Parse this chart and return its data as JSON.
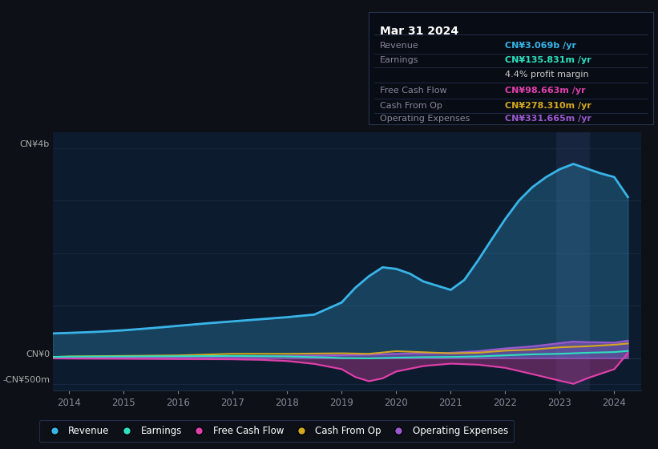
{
  "bg_color": "#0d1117",
  "plot_bg_color": "#0d1b2e",
  "grid_color": "#1e2f45",
  "title_date": "Mar 31 2024",
  "info_box_bg": "#080c14",
  "info_box_border": "#2a3350",
  "ylabel_top": "CN¥4b",
  "ylabel_zero": "CN¥0",
  "ylabel_neg": "-CN¥500m",
  "ylim": [
    -620,
    4300
  ],
  "xlim": [
    2013.7,
    2024.5
  ],
  "x_ticks": [
    2014,
    2015,
    2016,
    2017,
    2018,
    2019,
    2020,
    2021,
    2022,
    2023,
    2024
  ],
  "highlight_x": 2023.25,
  "revenue_x": [
    2013.7,
    2014.0,
    2014.5,
    2015.0,
    2015.5,
    2016.0,
    2016.5,
    2017.0,
    2017.5,
    2018.0,
    2018.5,
    2019.0,
    2019.25,
    2019.5,
    2019.75,
    2020.0,
    2020.25,
    2020.5,
    2020.75,
    2021.0,
    2021.25,
    2021.5,
    2021.75,
    2022.0,
    2022.25,
    2022.5,
    2022.75,
    2023.0,
    2023.25,
    2023.5,
    2023.75,
    2024.0,
    2024.25
  ],
  "revenue_y": [
    470,
    480,
    500,
    530,
    570,
    615,
    660,
    700,
    740,
    780,
    830,
    1060,
    1340,
    1560,
    1730,
    1700,
    1610,
    1460,
    1380,
    1300,
    1490,
    1860,
    2260,
    2650,
    3000,
    3260,
    3450,
    3600,
    3700,
    3610,
    3520,
    3450,
    3069
  ],
  "earnings_x": [
    2013.7,
    2014.0,
    2015.0,
    2016.0,
    2017.0,
    2018.0,
    2018.75,
    2019.0,
    2019.5,
    2020.0,
    2020.5,
    2021.0,
    2021.5,
    2022.0,
    2022.5,
    2023.0,
    2023.5,
    2024.0,
    2024.25
  ],
  "earnings_y": [
    22,
    28,
    32,
    36,
    42,
    32,
    12,
    0,
    -5,
    8,
    18,
    22,
    32,
    52,
    72,
    82,
    102,
    115,
    135.831
  ],
  "fcf_x": [
    2013.7,
    2014.0,
    2015.0,
    2016.0,
    2017.0,
    2017.5,
    2018.0,
    2018.5,
    2019.0,
    2019.25,
    2019.5,
    2019.75,
    2020.0,
    2020.5,
    2021.0,
    2021.5,
    2022.0,
    2022.5,
    2023.0,
    2023.25,
    2023.5,
    2024.0,
    2024.25
  ],
  "fcf_y": [
    -5,
    -8,
    -12,
    -18,
    -22,
    -32,
    -55,
    -110,
    -210,
    -360,
    -440,
    -385,
    -255,
    -150,
    -105,
    -125,
    -185,
    -305,
    -430,
    -490,
    -385,
    -210,
    98.663
  ],
  "cop_x": [
    2013.7,
    2014.0,
    2015.0,
    2016.0,
    2017.0,
    2018.0,
    2019.0,
    2019.5,
    2020.0,
    2020.5,
    2021.0,
    2021.5,
    2022.0,
    2022.5,
    2023.0,
    2023.5,
    2024.0,
    2024.25
  ],
  "cop_y": [
    22,
    32,
    42,
    52,
    82,
    82,
    92,
    82,
    132,
    112,
    92,
    102,
    142,
    162,
    205,
    225,
    255,
    278.31
  ],
  "opex_x": [
    2013.7,
    2014.0,
    2015.0,
    2016.0,
    2017.0,
    2018.0,
    2019.0,
    2020.0,
    2021.0,
    2021.5,
    2022.0,
    2022.5,
    2023.0,
    2023.25,
    2023.5,
    2024.0,
    2024.25
  ],
  "opex_y": [
    12,
    18,
    22,
    28,
    32,
    42,
    55,
    82,
    102,
    132,
    185,
    225,
    285,
    315,
    305,
    295,
    331.665
  ],
  "revenue_color": "#38b4e8",
  "earnings_color": "#2de0c0",
  "fcf_color": "#e040ab",
  "cop_color": "#d4a820",
  "opex_color": "#9b59d0",
  "legend": [
    {
      "label": "Revenue",
      "color": "#38b4e8"
    },
    {
      "label": "Earnings",
      "color": "#2de0c0"
    },
    {
      "label": "Free Cash Flow",
      "color": "#e040ab"
    },
    {
      "label": "Cash From Op",
      "color": "#d4a820"
    },
    {
      "label": "Operating Expenses",
      "color": "#9b59d0"
    }
  ],
  "info_rows": [
    {
      "label": "Revenue",
      "value": "CN¥3.069b /yr",
      "value_color": "#38b4e8"
    },
    {
      "label": "Earnings",
      "value": "CN¥135.831m /yr",
      "value_color": "#2de0c0"
    },
    {
      "label": "",
      "value": "4.4% profit margin",
      "value_color": "#cccccc"
    },
    {
      "label": "Free Cash Flow",
      "value": "CN¥98.663m /yr",
      "value_color": "#e040ab"
    },
    {
      "label": "Cash From Op",
      "value": "CN¥278.310m /yr",
      "value_color": "#d4a820"
    },
    {
      "label": "Operating Expenses",
      "value": "CN¥331.665m /yr",
      "value_color": "#9b59d0"
    }
  ]
}
